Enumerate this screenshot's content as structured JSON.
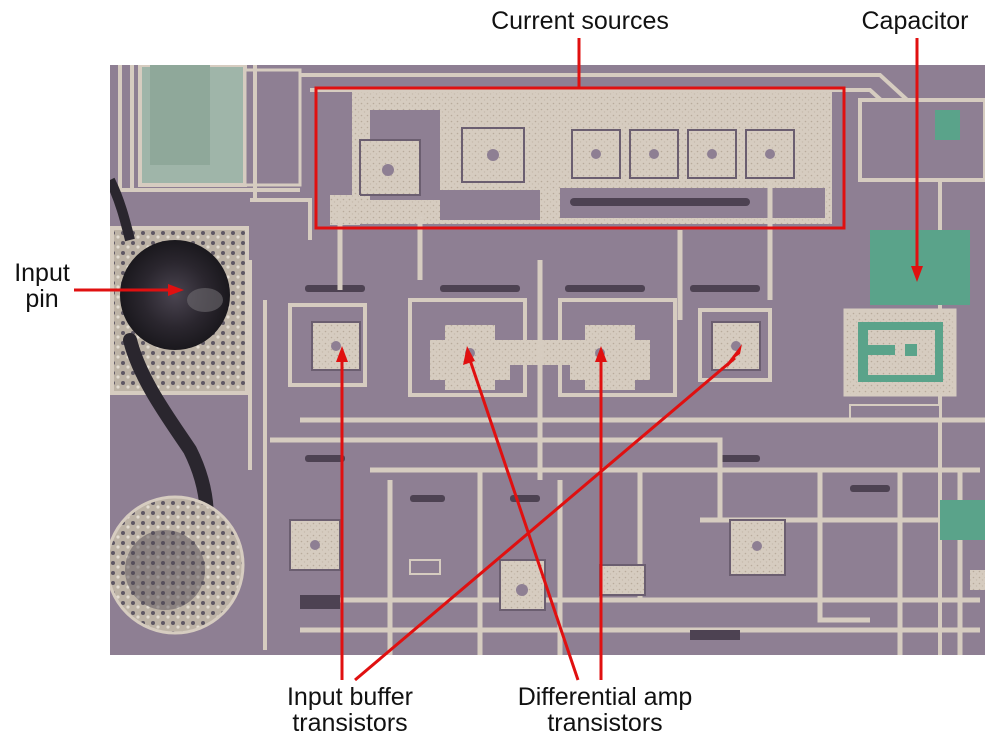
{
  "labels": {
    "current_sources": "Current sources",
    "capacitor": "Capacitor",
    "input_pin": [
      "Input",
      "pin"
    ],
    "input_buffer": [
      "Input buffer",
      "transistors"
    ],
    "differential_amp": [
      "Differential amp",
      "transistors"
    ]
  },
  "colors": {
    "annotation": "#e01010",
    "substrate": "#8e7f93",
    "metal": "#d8cfc4",
    "metal_dark": "#b9ad9f",
    "poly": "#a3b8ab",
    "green_region": "#5aa38a",
    "trace": "#5f5266",
    "text": "#111111"
  },
  "icons": {
    "photo": "die-photo-icon"
  }
}
